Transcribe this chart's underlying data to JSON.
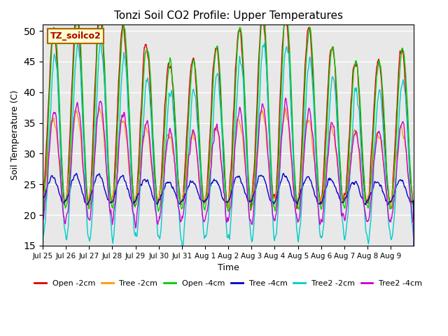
{
  "title": "Tonzi Soil CO2 Profile: Upper Temperatures",
  "xlabel": "Time",
  "ylabel": "Soil Temperature (C)",
  "ylim": [
    15,
    51
  ],
  "yticks": [
    15,
    20,
    25,
    30,
    35,
    40,
    45,
    50
  ],
  "background_color": "#ffffff",
  "plot_bg_color": "#e8e8e8",
  "watermark_text": "TZ_soilco2",
  "series": [
    {
      "label": "Open -2cm",
      "color": "#dd0000"
    },
    {
      "label": "Tree -2cm",
      "color": "#ff9900"
    },
    {
      "label": "Open -4cm",
      "color": "#00cc00"
    },
    {
      "label": "Tree -4cm",
      "color": "#0000cc"
    },
    {
      "label": "Tree2 -2cm",
      "color": "#00cccc"
    },
    {
      "label": "Tree2 -4cm",
      "color": "#cc00cc"
    }
  ],
  "xtick_labels": [
    "Jul 25",
    "Jul 26",
    "Jul 27",
    "Jul 28",
    "Jul 29",
    "Jul 30",
    "Jul 31",
    "Aug 1",
    "Aug 2",
    "Aug 3",
    "Aug 4",
    "Aug 5",
    "Aug 6",
    "Aug 7",
    "Aug 8",
    "Aug 9"
  ],
  "n_days": 16,
  "pts_per_day": 48
}
